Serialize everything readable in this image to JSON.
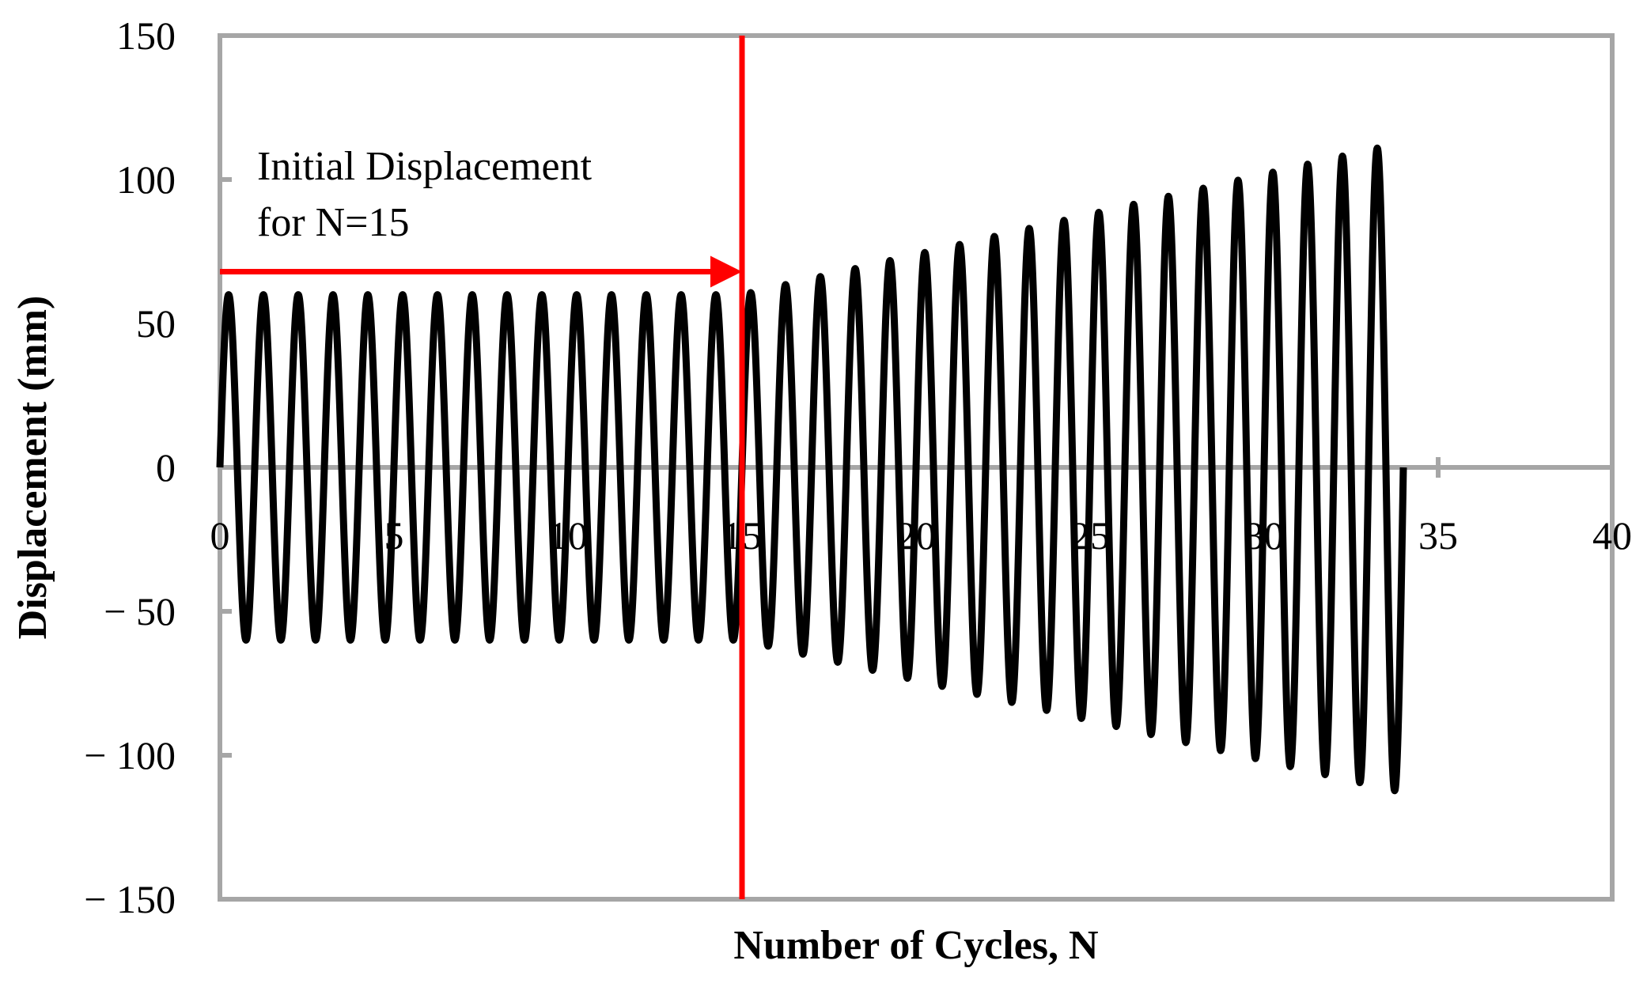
{
  "chart_data": {
    "type": "line",
    "title": "",
    "xlabel": "Number of Cycles,  N",
    "ylabel": "Displacement (mm)",
    "xlim": [
      0,
      40
    ],
    "ylim": [
      -150,
      150
    ],
    "xticks": [
      0,
      5,
      10,
      15,
      20,
      25,
      30,
      35,
      40
    ],
    "xtick_labels": [
      "0",
      "5",
      "10",
      "15",
      "20",
      "25",
      "30",
      "35",
      "40"
    ],
    "yticks": [
      150,
      100,
      50,
      0,
      -50,
      -100,
      -150
    ],
    "ytick_labels": [
      "150",
      "100",
      "50",
      "0",
      "− 50",
      "− 100",
      "− 150"
    ],
    "grid": false,
    "series": [
      {
        "color": "#000000",
        "form": "sinusoid",
        "cycles": 34,
        "initial_amplitude": 60,
        "constant_until_cycle": 15,
        "amplitude_at_cycle_34": 113,
        "start_cycle": 0
      }
    ],
    "annotations": [
      {
        "text_lines": [
          "Initial Displacement",
          "for N=15"
        ],
        "color": "#ff0000",
        "vertical_line_x": 15,
        "arrow_y": 68,
        "arrow_from_x": 0,
        "arrow_to_x": 15
      }
    ]
  }
}
